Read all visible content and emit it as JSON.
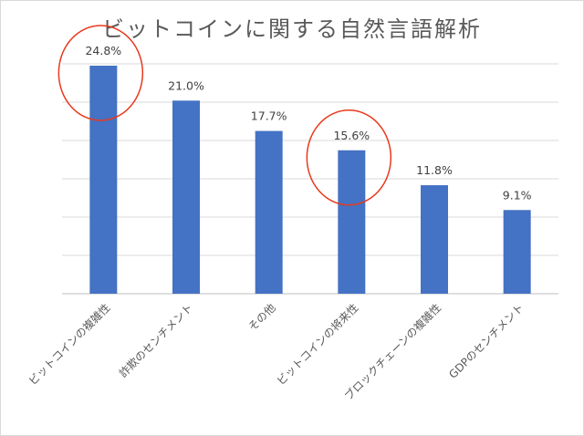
{
  "chart_data": {
    "type": "bar",
    "title": "ビットコインに関する自然言語解析",
    "categories": [
      "ビットコインの複雑性",
      "詐欺のセンチメント",
      "その他",
      "ビットコインの将来性",
      "ブロックチェーンの複雑性",
      "GDPのセンチメント"
    ],
    "values": [
      24.8,
      21.0,
      17.7,
      15.6,
      11.8,
      9.1
    ],
    "data_labels": [
      "24.8%",
      "21.0%",
      "17.7%",
      "15.6%",
      "11.8%",
      "9.1%"
    ],
    "ylim": [
      0,
      25
    ],
    "grid": true,
    "bar_color": "#4472C4",
    "highlighted_categories": [
      0,
      3
    ],
    "highlight_color": "#E8391D"
  }
}
